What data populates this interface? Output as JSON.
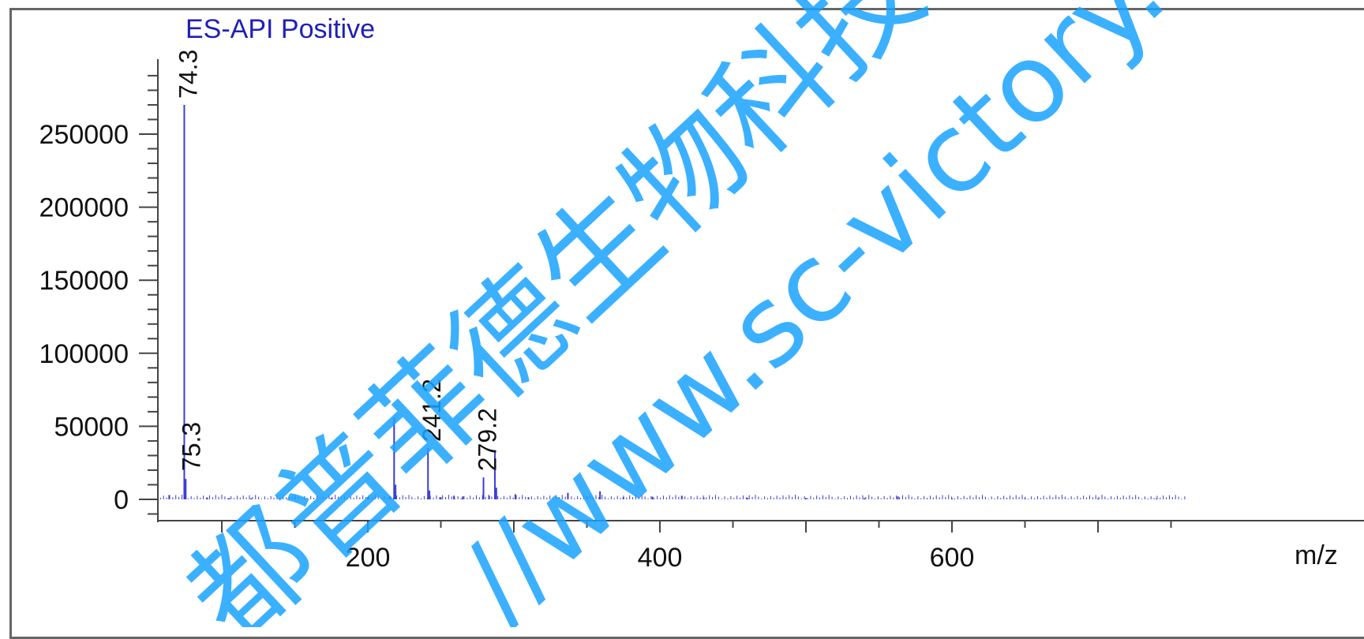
{
  "chart_data": {
    "type": "bar",
    "title": "ES-API Positive",
    "xlabel": "m/z",
    "ylabel": "",
    "xlim": [
      55,
      760
    ],
    "ylim": [
      -10000,
      300000
    ],
    "x_ticks": [
      200,
      400,
      600
    ],
    "y_ticks": [
      0,
      50000,
      100000,
      150000,
      200000,
      250000
    ],
    "grid": false,
    "legend": "none",
    "colors": {
      "peak": "#3b3bd6",
      "axis": "#444444",
      "title": "#1f1fb8",
      "watermark": "#1aa3ff"
    },
    "labeled_peaks": [
      {
        "x": 74.3,
        "y": 270000,
        "label": "74.3"
      },
      {
        "x": 75.3,
        "y": 14000,
        "label": "75.3"
      },
      {
        "x": 241.2,
        "y": 35000,
        "label": "241.2"
      },
      {
        "x": 279.2,
        "y": 15000,
        "label": "279.2"
      }
    ],
    "peaks": [
      {
        "x": 64,
        "y": 3000
      },
      {
        "x": 74.3,
        "y": 270000
      },
      {
        "x": 75.3,
        "y": 14000
      },
      {
        "x": 90,
        "y": 1200
      },
      {
        "x": 105,
        "y": 900
      },
      {
        "x": 120,
        "y": 700
      },
      {
        "x": 150,
        "y": 1000
      },
      {
        "x": 175,
        "y": 900
      },
      {
        "x": 200,
        "y": 1500
      },
      {
        "x": 215,
        "y": 1800
      },
      {
        "x": 218,
        "y": 56000
      },
      {
        "x": 219,
        "y": 10000
      },
      {
        "x": 241.2,
        "y": 35000
      },
      {
        "x": 242.2,
        "y": 6000
      },
      {
        "x": 250,
        "y": 1500
      },
      {
        "x": 259,
        "y": 2500
      },
      {
        "x": 265,
        "y": 2000
      },
      {
        "x": 279.2,
        "y": 15000
      },
      {
        "x": 283,
        "y": 2500
      },
      {
        "x": 287,
        "y": 33000
      },
      {
        "x": 288,
        "y": 8000
      },
      {
        "x": 301,
        "y": 3500
      },
      {
        "x": 310,
        "y": 1500
      },
      {
        "x": 337,
        "y": 4500
      },
      {
        "x": 350,
        "y": 2000
      },
      {
        "x": 359,
        "y": 5500
      },
      {
        "x": 375,
        "y": 1500
      },
      {
        "x": 395,
        "y": 1800
      },
      {
        "x": 415,
        "y": 2500
      },
      {
        "x": 430,
        "y": 1200
      },
      {
        "x": 460,
        "y": 1000
      },
      {
        "x": 500,
        "y": 900
      },
      {
        "x": 540,
        "y": 800
      },
      {
        "x": 563,
        "y": 2000
      },
      {
        "x": 600,
        "y": 700
      },
      {
        "x": 650,
        "y": 700
      },
      {
        "x": 700,
        "y": 600
      },
      {
        "x": 740,
        "y": 600
      }
    ]
  },
  "watermark": {
    "line1": "都普菲德生物科技有限公司",
    "line2": "//www.sc-victory.com"
  }
}
